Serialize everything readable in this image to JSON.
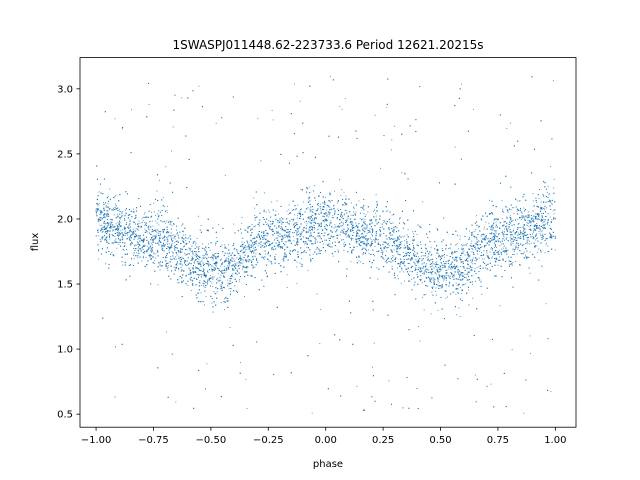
{
  "chart_data": {
    "type": "scatter",
    "title": "1SWASPJ011448.62-223733.6 Period 12621.20215s",
    "xlabel": "phase",
    "ylabel": "flux",
    "xlim": [
      -1.07,
      1.09
    ],
    "ylim": [
      0.4,
      3.24
    ],
    "xticks": [
      -1.0,
      -0.75,
      -0.5,
      -0.25,
      0.0,
      0.25,
      0.5,
      0.75,
      1.0
    ],
    "xtick_labels": [
      "−1.00",
      "−0.75",
      "−0.50",
      "−0.25",
      "0.00",
      "0.25",
      "0.50",
      "0.75",
      "1.00"
    ],
    "yticks": [
      0.5,
      1.0,
      1.5,
      2.0,
      2.5,
      3.0
    ],
    "ytick_labels": [
      "0.5",
      "1.0",
      "1.5",
      "2.0",
      "2.5",
      "3.0"
    ],
    "grid": false,
    "point_color": "#1f77b4",
    "series": [
      {
        "phase_range": [
          -1.0,
          1.0
        ],
        "trend": {
          "phase": [
            -1.0,
            -0.75,
            -0.5,
            -0.45,
            -0.25,
            0.0,
            0.25,
            0.5,
            0.55,
            0.75,
            1.0
          ],
          "flux": [
            1.97,
            1.85,
            1.6,
            1.6,
            1.85,
            1.97,
            1.85,
            1.6,
            1.6,
            1.85,
            1.97
          ]
        },
        "scatter_spread": 0.12,
        "outlier_range": [
          0.5,
          3.1
        ]
      }
    ]
  }
}
